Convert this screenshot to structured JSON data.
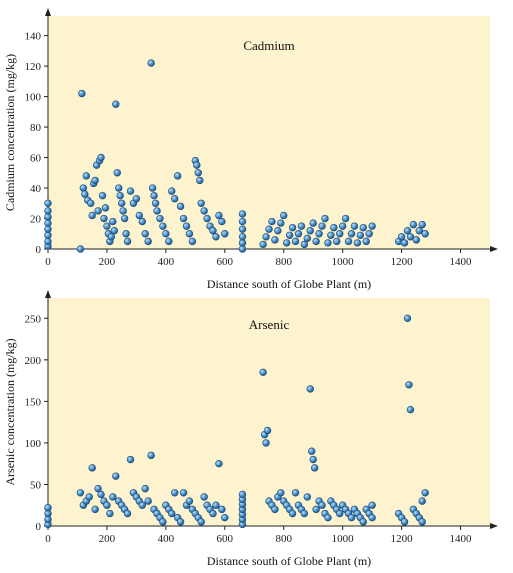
{
  "chart_data": [
    {
      "type": "scatter",
      "title": "Cadmium",
      "xlabel": "Distance south of Globe Plant (m)",
      "ylabel": "Cadmium concentration (mg/kg)",
      "xlim": [
        0,
        1500
      ],
      "ylim": [
        0,
        145
      ],
      "xticks": [
        0,
        200,
        400,
        600,
        800,
        1000,
        1200,
        1400
      ],
      "yticks": [
        0,
        20,
        40,
        60,
        80,
        100,
        120,
        140
      ],
      "grid": false,
      "points": [
        [
          0,
          2
        ],
        [
          0,
          5
        ],
        [
          0,
          9
        ],
        [
          0,
          13
        ],
        [
          0,
          17
        ],
        [
          0,
          21
        ],
        [
          0,
          25
        ],
        [
          0,
          30
        ],
        [
          110,
          0
        ],
        [
          115,
          102
        ],
        [
          120,
          40
        ],
        [
          125,
          36
        ],
        [
          130,
          48
        ],
        [
          135,
          32
        ],
        [
          145,
          30
        ],
        [
          150,
          22
        ],
        [
          155,
          43
        ],
        [
          160,
          45
        ],
        [
          165,
          55
        ],
        [
          170,
          25
        ],
        [
          175,
          58
        ],
        [
          180,
          60
        ],
        [
          185,
          35
        ],
        [
          190,
          20
        ],
        [
          195,
          27
        ],
        [
          200,
          15
        ],
        [
          205,
          10
        ],
        [
          210,
          5
        ],
        [
          215,
          8
        ],
        [
          220,
          18
        ],
        [
          225,
          12
        ],
        [
          230,
          95
        ],
        [
          235,
          50
        ],
        [
          240,
          40
        ],
        [
          245,
          35
        ],
        [
          250,
          30
        ],
        [
          255,
          25
        ],
        [
          260,
          20
        ],
        [
          265,
          10
        ],
        [
          270,
          5
        ],
        [
          280,
          38
        ],
        [
          290,
          30
        ],
        [
          300,
          33
        ],
        [
          310,
          22
        ],
        [
          320,
          18
        ],
        [
          330,
          10
        ],
        [
          340,
          5
        ],
        [
          350,
          122
        ],
        [
          355,
          40
        ],
        [
          360,
          35
        ],
        [
          365,
          30
        ],
        [
          370,
          25
        ],
        [
          380,
          20
        ],
        [
          390,
          15
        ],
        [
          400,
          10
        ],
        [
          410,
          5
        ],
        [
          420,
          38
        ],
        [
          430,
          33
        ],
        [
          440,
          48
        ],
        [
          450,
          28
        ],
        [
          460,
          20
        ],
        [
          470,
          15
        ],
        [
          480,
          10
        ],
        [
          490,
          5
        ],
        [
          500,
          58
        ],
        [
          505,
          55
        ],
        [
          510,
          50
        ],
        [
          515,
          45
        ],
        [
          520,
          30
        ],
        [
          530,
          25
        ],
        [
          540,
          20
        ],
        [
          550,
          15
        ],
        [
          560,
          12
        ],
        [
          570,
          8
        ],
        [
          580,
          22
        ],
        [
          590,
          18
        ],
        [
          600,
          10
        ],
        [
          660,
          0
        ],
        [
          660,
          4
        ],
        [
          660,
          8
        ],
        [
          660,
          13
        ],
        [
          660,
          18
        ],
        [
          660,
          23
        ],
        [
          730,
          3
        ],
        [
          740,
          8
        ],
        [
          750,
          13
        ],
        [
          760,
          18
        ],
        [
          770,
          6
        ],
        [
          780,
          12
        ],
        [
          790,
          17
        ],
        [
          800,
          22
        ],
        [
          810,
          4
        ],
        [
          820,
          9
        ],
        [
          830,
          14
        ],
        [
          840,
          5
        ],
        [
          850,
          10
        ],
        [
          860,
          15
        ],
        [
          870,
          3
        ],
        [
          880,
          7
        ],
        [
          890,
          12
        ],
        [
          900,
          17
        ],
        [
          910,
          5
        ],
        [
          920,
          10
        ],
        [
          930,
          15
        ],
        [
          940,
          20
        ],
        [
          950,
          4
        ],
        [
          960,
          9
        ],
        [
          970,
          14
        ],
        [
          980,
          5
        ],
        [
          990,
          10
        ],
        [
          1000,
          15
        ],
        [
          1010,
          20
        ],
        [
          1020,
          5
        ],
        [
          1030,
          10
        ],
        [
          1040,
          15
        ],
        [
          1050,
          4
        ],
        [
          1060,
          9
        ],
        [
          1070,
          14
        ],
        [
          1080,
          5
        ],
        [
          1090,
          10
        ],
        [
          1100,
          15
        ],
        [
          1190,
          5
        ],
        [
          1200,
          8
        ],
        [
          1210,
          4
        ],
        [
          1220,
          12
        ],
        [
          1230,
          8
        ],
        [
          1240,
          16
        ],
        [
          1250,
          6
        ],
        [
          1260,
          12
        ],
        [
          1270,
          16
        ],
        [
          1280,
          10
        ]
      ]
    },
    {
      "type": "scatter",
      "title": "Arsenic",
      "xlabel": "Distance south of Globe Plant (m)",
      "ylabel": "Arsenic concentration (mg/kg)",
      "xlim": [
        0,
        1500
      ],
      "ylim": [
        0,
        260
      ],
      "xticks": [
        0,
        200,
        400,
        600,
        800,
        1000,
        1200,
        1400
      ],
      "yticks": [
        0,
        50,
        100,
        150,
        200,
        250
      ],
      "grid": false,
      "points": [
        [
          0,
          2
        ],
        [
          0,
          8
        ],
        [
          0,
          15
        ],
        [
          0,
          22
        ],
        [
          110,
          40
        ],
        [
          120,
          25
        ],
        [
          130,
          30
        ],
        [
          140,
          35
        ],
        [
          150,
          70
        ],
        [
          160,
          20
        ],
        [
          170,
          45
        ],
        [
          180,
          38
        ],
        [
          190,
          30
        ],
        [
          200,
          25
        ],
        [
          210,
          15
        ],
        [
          220,
          35
        ],
        [
          230,
          60
        ],
        [
          240,
          30
        ],
        [
          250,
          25
        ],
        [
          260,
          20
        ],
        [
          270,
          15
        ],
        [
          280,
          80
        ],
        [
          290,
          40
        ],
        [
          300,
          35
        ],
        [
          310,
          30
        ],
        [
          320,
          25
        ],
        [
          330,
          45
        ],
        [
          340,
          30
        ],
        [
          350,
          85
        ],
        [
          360,
          20
        ],
        [
          370,
          15
        ],
        [
          380,
          10
        ],
        [
          390,
          5
        ],
        [
          400,
          25
        ],
        [
          410,
          20
        ],
        [
          420,
          15
        ],
        [
          430,
          40
        ],
        [
          440,
          10
        ],
        [
          450,
          5
        ],
        [
          460,
          40
        ],
        [
          470,
          25
        ],
        [
          480,
          30
        ],
        [
          490,
          20
        ],
        [
          500,
          15
        ],
        [
          510,
          10
        ],
        [
          520,
          5
        ],
        [
          530,
          35
        ],
        [
          540,
          25
        ],
        [
          550,
          20
        ],
        [
          560,
          15
        ],
        [
          570,
          25
        ],
        [
          580,
          75
        ],
        [
          590,
          20
        ],
        [
          600,
          10
        ],
        [
          660,
          2
        ],
        [
          660,
          8
        ],
        [
          660,
          14
        ],
        [
          660,
          20
        ],
        [
          660,
          26
        ],
        [
          660,
          32
        ],
        [
          660,
          38
        ],
        [
          730,
          185
        ],
        [
          735,
          110
        ],
        [
          740,
          100
        ],
        [
          745,
          115
        ],
        [
          750,
          30
        ],
        [
          760,
          25
        ],
        [
          770,
          20
        ],
        [
          780,
          35
        ],
        [
          790,
          40
        ],
        [
          800,
          30
        ],
        [
          810,
          25
        ],
        [
          820,
          20
        ],
        [
          830,
          15
        ],
        [
          840,
          40
        ],
        [
          850,
          25
        ],
        [
          860,
          20
        ],
        [
          870,
          15
        ],
        [
          880,
          35
        ],
        [
          890,
          165
        ],
        [
          895,
          90
        ],
        [
          900,
          80
        ],
        [
          905,
          70
        ],
        [
          910,
          20
        ],
        [
          920,
          30
        ],
        [
          930,
          25
        ],
        [
          940,
          15
        ],
        [
          950,
          10
        ],
        [
          960,
          30
        ],
        [
          970,
          25
        ],
        [
          980,
          20
        ],
        [
          990,
          15
        ],
        [
          1000,
          25
        ],
        [
          1010,
          20
        ],
        [
          1020,
          15
        ],
        [
          1030,
          10
        ],
        [
          1040,
          20
        ],
        [
          1050,
          15
        ],
        [
          1060,
          10
        ],
        [
          1070,
          5
        ],
        [
          1080,
          20
        ],
        [
          1090,
          15
        ],
        [
          1100,
          10
        ],
        [
          1100,
          25
        ],
        [
          1190,
          15
        ],
        [
          1200,
          10
        ],
        [
          1210,
          5
        ],
        [
          1220,
          250
        ],
        [
          1225,
          170
        ],
        [
          1230,
          140
        ],
        [
          1240,
          20
        ],
        [
          1250,
          15
        ],
        [
          1260,
          10
        ],
        [
          1270,
          5
        ],
        [
          1280,
          40
        ],
        [
          1270,
          30
        ]
      ]
    }
  ]
}
